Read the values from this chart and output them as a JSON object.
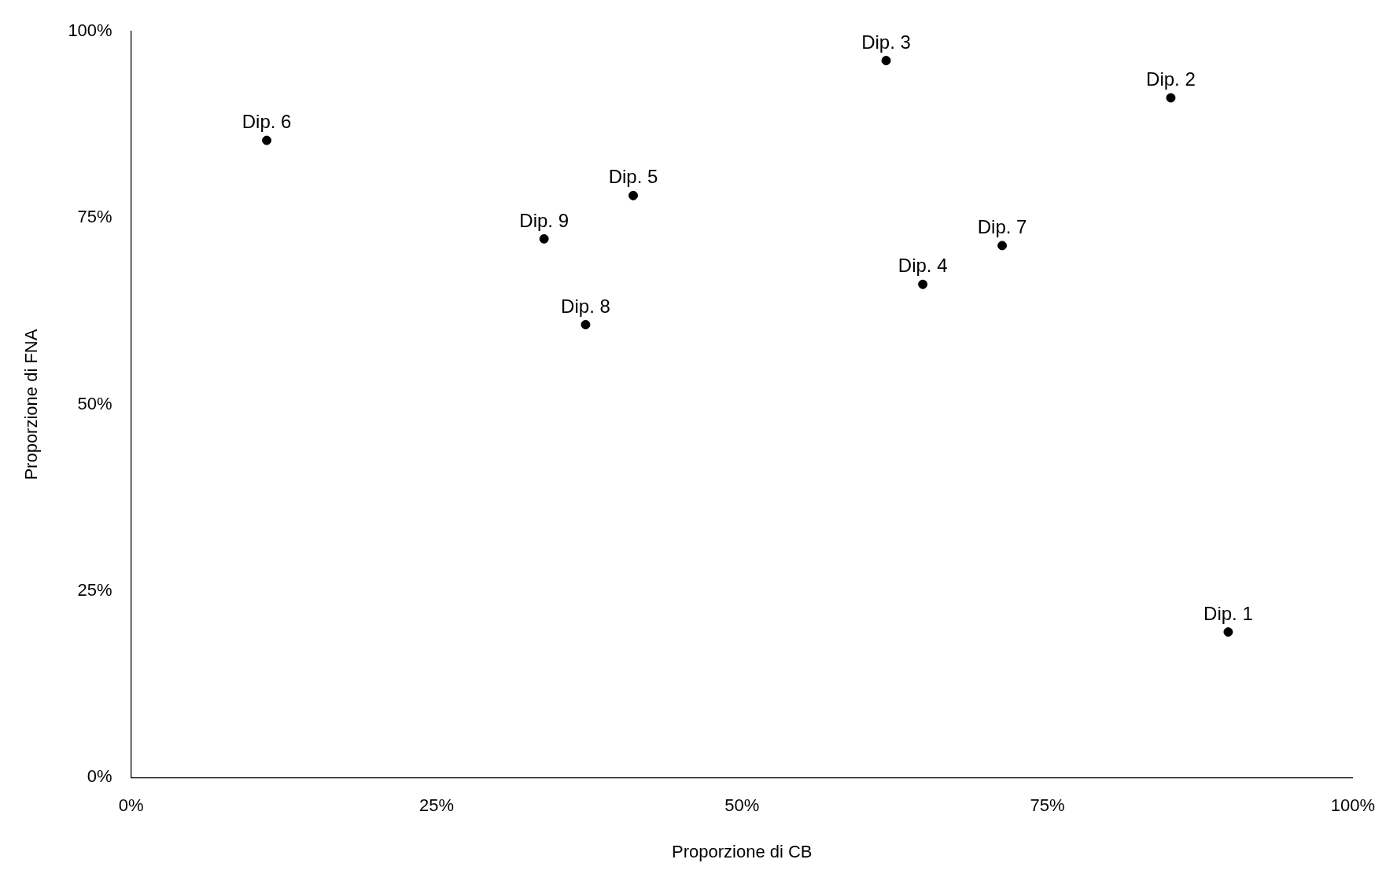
{
  "chart_data": {
    "type": "scatter",
    "xlabel": "Proporzione di CB",
    "ylabel": "Proporzione di FNA",
    "x": [
      89.8,
      85.1,
      61.8,
      64.8,
      41.1,
      11.1,
      71.3,
      37.2,
      33.8
    ],
    "series": [
      {
        "color": "#000000",
        "values": [
          19.5,
          91.1,
          96.1,
          66.1,
          78.0,
          85.4,
          71.3,
          60.7,
          72.2
        ]
      }
    ],
    "xlim": [
      0,
      100
    ],
    "ylim": [
      0,
      100
    ],
    "xticks": [
      {
        "value": 0,
        "label": "0%"
      },
      {
        "value": 25,
        "label": "25%"
      },
      {
        "value": 50,
        "label": "50%"
      },
      {
        "value": 75,
        "label": "75%"
      },
      {
        "value": 100,
        "label": "100%"
      }
    ],
    "yticks": [
      {
        "value": 0,
        "label": "0%"
      },
      {
        "value": 25,
        "label": "25%"
      },
      {
        "value": 50,
        "label": "50%"
      },
      {
        "value": 75,
        "label": "75%"
      },
      {
        "value": 100,
        "label": "100%"
      }
    ],
    "grid": false,
    "legend": false,
    "marker": "circle",
    "annotations": [
      {
        "text": "Dip. 1",
        "x": 89.8,
        "y": 19.5
      },
      {
        "text": "Dip. 2",
        "x": 85.1,
        "y": 91.1
      },
      {
        "text": "Dip. 3",
        "x": 61.8,
        "y": 96.1
      },
      {
        "text": "Dip. 4",
        "x": 64.8,
        "y": 66.1
      },
      {
        "text": "Dip. 5",
        "x": 41.1,
        "y": 78.0
      },
      {
        "text": "Dip. 6",
        "x": 11.1,
        "y": 85.4
      },
      {
        "text": "Dip. 7",
        "x": 71.3,
        "y": 71.3
      },
      {
        "text": "Dip. 8",
        "x": 37.2,
        "y": 60.7
      },
      {
        "text": "Dip. 9",
        "x": 33.8,
        "y": 72.2
      }
    ]
  }
}
